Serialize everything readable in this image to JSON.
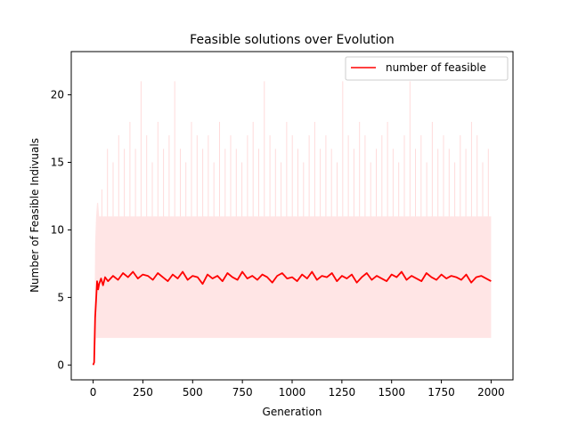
{
  "chart_data": {
    "type": "line",
    "title": "Feasible solutions over Evolution",
    "xlabel": "Generation",
    "ylabel": "Number of Feasible Indivuals",
    "xlim": [
      -110,
      2110
    ],
    "ylim": [
      -1.1,
      23.2
    ],
    "xticks": [
      0,
      250,
      500,
      750,
      1000,
      1250,
      1500,
      1750,
      2000
    ],
    "yticks": [
      0,
      5,
      10,
      15,
      20
    ],
    "legend": {
      "position": "top-right",
      "entries": [
        "number of feasible"
      ]
    },
    "grid": false,
    "series": [
      {
        "name": "number of feasible",
        "color": "#ff0000",
        "x": [
          0,
          5,
          10,
          15,
          20,
          25,
          30,
          40,
          50,
          60,
          75,
          100,
          125,
          150,
          175,
          200,
          225,
          250,
          275,
          300,
          325,
          350,
          375,
          400,
          425,
          450,
          475,
          500,
          525,
          550,
          575,
          600,
          625,
          650,
          675,
          700,
          725,
          750,
          775,
          800,
          825,
          850,
          875,
          900,
          925,
          950,
          975,
          1000,
          1025,
          1050,
          1075,
          1100,
          1125,
          1150,
          1175,
          1200,
          1225,
          1250,
          1275,
          1300,
          1325,
          1350,
          1375,
          1400,
          1425,
          1450,
          1475,
          1500,
          1525,
          1550,
          1575,
          1600,
          1625,
          1650,
          1675,
          1700,
          1725,
          1750,
          1775,
          1800,
          1825,
          1850,
          1875,
          1900,
          1925,
          1950,
          1975,
          2000
        ],
        "y": [
          0,
          0.2,
          3.5,
          4.8,
          6.2,
          5.6,
          6.0,
          6.4,
          5.9,
          6.5,
          6.2,
          6.6,
          6.3,
          6.8,
          6.5,
          6.9,
          6.4,
          6.7,
          6.6,
          6.3,
          6.8,
          6.5,
          6.2,
          6.7,
          6.4,
          6.9,
          6.3,
          6.6,
          6.5,
          6.0,
          6.7,
          6.4,
          6.6,
          6.2,
          6.8,
          6.5,
          6.3,
          6.9,
          6.4,
          6.6,
          6.3,
          6.7,
          6.5,
          6.1,
          6.6,
          6.8,
          6.4,
          6.5,
          6.2,
          6.7,
          6.4,
          6.9,
          6.3,
          6.6,
          6.5,
          6.8,
          6.2,
          6.6,
          6.4,
          6.7,
          6.1,
          6.5,
          6.8,
          6.3,
          6.6,
          6.4,
          6.2,
          6.7,
          6.5,
          6.9,
          6.3,
          6.6,
          6.4,
          6.2,
          6.8,
          6.5,
          6.3,
          6.7,
          6.4,
          6.6,
          6.5,
          6.3,
          6.7,
          6.1,
          6.5,
          6.6,
          6.4,
          6.2
        ]
      }
    ],
    "band": {
      "color": "#ff9999",
      "x": [
        0,
        5,
        10,
        15,
        20,
        25,
        30,
        2000
      ],
      "lower": [
        0,
        0,
        1,
        2,
        2,
        2,
        2,
        2
      ],
      "upper": [
        0,
        0,
        9,
        11,
        12,
        12,
        11,
        11
      ],
      "max_spikes": [
        13,
        16,
        15,
        17,
        16,
        18,
        16,
        21,
        17,
        15,
        18,
        16,
        17,
        21,
        16,
        15,
        18,
        17,
        16,
        17,
        15,
        18,
        16,
        17,
        16,
        15,
        17,
        18,
        16,
        21,
        17,
        16,
        15,
        18,
        17,
        16,
        15,
        17,
        18,
        16,
        17,
        16,
        15,
        21,
        17,
        16,
        18,
        17,
        15,
        16,
        17,
        18,
        16,
        15,
        17,
        21,
        16,
        17,
        15,
        18,
        16,
        17,
        16,
        15,
        17,
        16,
        18,
        17,
        15,
        16
      ]
    }
  }
}
